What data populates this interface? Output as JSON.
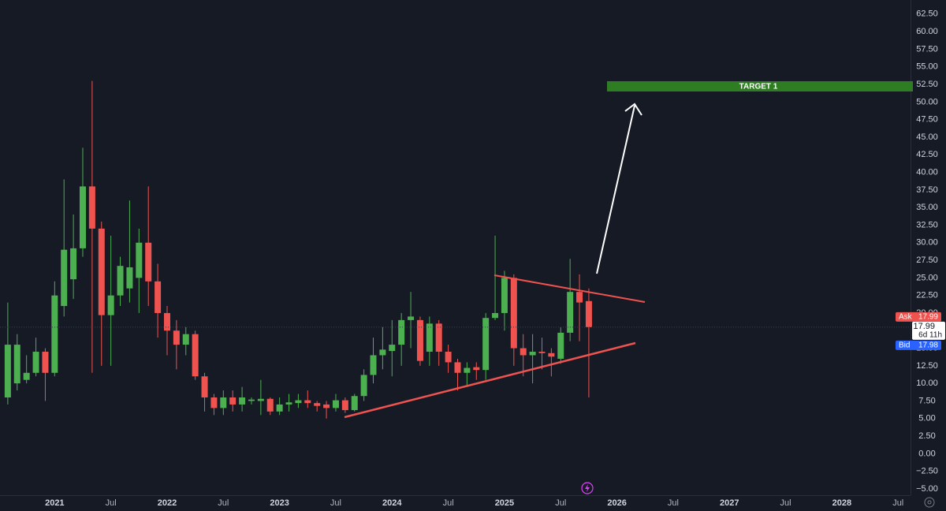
{
  "chart_data": {
    "type": "candlestick",
    "x": [
      "2020-08",
      "2020-09",
      "2020-10",
      "2020-11",
      "2020-12",
      "2021-01",
      "2021-02",
      "2021-03",
      "2021-04",
      "2021-05",
      "2021-06",
      "2021-07",
      "2021-08",
      "2021-09",
      "2021-10",
      "2021-11",
      "2021-12",
      "2022-01",
      "2022-02",
      "2022-03",
      "2022-04",
      "2022-05",
      "2022-06",
      "2022-07",
      "2022-08",
      "2022-09",
      "2022-10",
      "2022-11",
      "2022-12",
      "2023-01",
      "2023-02",
      "2023-03",
      "2023-04",
      "2023-05",
      "2023-06",
      "2023-07",
      "2023-08",
      "2023-09",
      "2023-10",
      "2023-11",
      "2023-12",
      "2024-01",
      "2024-02",
      "2024-03",
      "2024-04",
      "2024-05",
      "2024-06",
      "2024-07",
      "2024-08",
      "2024-09",
      "2024-10",
      "2024-11",
      "2024-12",
      "2025-01",
      "2025-02",
      "2025-03",
      "2025-04",
      "2025-05",
      "2025-06",
      "2025-07",
      "2025-08",
      "2025-09",
      "2025-10"
    ],
    "open": [
      8,
      10,
      10.5,
      11.5,
      14.5,
      11.5,
      21,
      24.8,
      29.2,
      38,
      32,
      19.7,
      22.5,
      23.5,
      25,
      30,
      24.5,
      20,
      17.5,
      15.5,
      17,
      11,
      8,
      6.5,
      8,
      7,
      7.5,
      7.5,
      7.8,
      6,
      7,
      7.2,
      7.6,
      7.2,
      7,
      6.5,
      7.6,
      6.2,
      8.2,
      11.2,
      14,
      14.6,
      15.5,
      19,
      19,
      14.5,
      18.5,
      14.5,
      13,
      11.5,
      12.3,
      11.9,
      19.3,
      20,
      25,
      15,
      14,
      14.5,
      14.3,
      13.5,
      17.2,
      23,
      21.7
    ],
    "high": [
      21.5,
      17,
      14,
      16.5,
      15,
      24.5,
      39,
      34,
      43.5,
      53,
      33,
      31,
      28,
      36,
      32,
      38,
      27,
      21,
      19,
      18,
      17.5,
      11.5,
      8.5,
      9,
      9,
      9.5,
      8,
      10.5,
      8,
      8,
      8.5,
      8.5,
      9,
      7.5,
      7.5,
      8.5,
      8,
      8.5,
      12,
      16.5,
      18,
      19,
      20,
      23,
      19.5,
      19.5,
      19,
      15.5,
      13.5,
      13,
      13,
      20,
      31,
      26,
      25.5,
      17,
      17,
      16.5,
      15,
      18,
      27.7,
      25.5,
      23.5
    ],
    "low": [
      7,
      9,
      10,
      11,
      7.5,
      11,
      19.5,
      22,
      28,
      11.5,
      12.5,
      12.5,
      21,
      21.5,
      20,
      21,
      16.5,
      14,
      12,
      14,
      10.5,
      6,
      5.5,
      5.5,
      6,
      6,
      7,
      5.5,
      5.5,
      5.5,
      6,
      6.5,
      6.5,
      6,
      5,
      6,
      5.8,
      6,
      7.5,
      10,
      12,
      11,
      12.5,
      15,
      12.5,
      12.5,
      12.5,
      11.5,
      9,
      9.5,
      10.5,
      10.5,
      19,
      17.5,
      12.5,
      11,
      10,
      12,
      11,
      12.8,
      16,
      16,
      8
    ],
    "close": [
      15.5,
      15.5,
      11.5,
      14.5,
      11.5,
      22.5,
      29,
      29.2,
      38,
      32,
      19.7,
      22.5,
      26.7,
      26.5,
      30,
      24.5,
      20,
      17.5,
      15.5,
      17,
      11,
      8,
      6.5,
      8,
      7,
      8,
      7.7,
      7.8,
      6,
      7,
      7.3,
      7.6,
      7.2,
      6.8,
      6.5,
      7.6,
      6.2,
      8.2,
      11.2,
      14,
      14.8,
      15.5,
      19,
      19.5,
      13.2,
      18.5,
      14.5,
      13,
      11.5,
      12.2,
      11.9,
      19.3,
      20,
      25,
      15,
      14,
      14.5,
      14.3,
      13.8,
      17.2,
      23,
      21.5,
      17.99
    ],
    "up_color": "#4caf50",
    "down_color": "#ef5350",
    "xlim": [
      "2020-07",
      "2028-09"
    ],
    "xticks": [
      {
        "value": "2021-01",
        "label": "2021"
      },
      {
        "value": "2021-07",
        "label": "Jul"
      },
      {
        "value": "2022-01",
        "label": "2022"
      },
      {
        "value": "2022-07",
        "label": "Jul"
      },
      {
        "value": "2023-01",
        "label": "2023"
      },
      {
        "value": "2023-07",
        "label": "Jul"
      },
      {
        "value": "2024-01",
        "label": "2024"
      },
      {
        "value": "2024-07",
        "label": "Jul"
      },
      {
        "value": "2025-01",
        "label": "2025"
      },
      {
        "value": "2025-07",
        "label": "Jul"
      },
      {
        "value": "2026-01",
        "label": "2026"
      },
      {
        "value": "2026-07",
        "label": "Jul"
      },
      {
        "value": "2027-01",
        "label": "2027"
      },
      {
        "value": "2027-07",
        "label": "Jul"
      },
      {
        "value": "2028-01",
        "label": "2028"
      },
      {
        "value": "2028-07",
        "label": "Jul"
      }
    ],
    "ylim": [
      -5.9,
      64.5
    ],
    "yticks": [
      {
        "value": -5,
        "label": "−5.00"
      },
      {
        "value": -2.5,
        "label": "−2.50"
      },
      {
        "value": 0,
        "label": "0.00"
      },
      {
        "value": 2.5,
        "label": "2.50"
      },
      {
        "value": 5,
        "label": "5.00"
      },
      {
        "value": 7.5,
        "label": "7.50"
      },
      {
        "value": 10,
        "label": "10.00"
      },
      {
        "value": 12.5,
        "label": "12.50"
      },
      {
        "value": 15,
        "label": "15.00"
      },
      {
        "value": 17.5,
        "label": "17.50"
      },
      {
        "value": 20,
        "label": "20.00"
      },
      {
        "value": 22.5,
        "label": "22.50"
      },
      {
        "value": 25,
        "label": "25.00"
      },
      {
        "value": 27.5,
        "label": "27.50"
      },
      {
        "value": 30,
        "label": "30.00"
      },
      {
        "value": 32.5,
        "label": "32.50"
      },
      {
        "value": 35,
        "label": "35.00"
      },
      {
        "value": 37.5,
        "label": "37.50"
      },
      {
        "value": 40,
        "label": "40.00"
      },
      {
        "value": 42.5,
        "label": "42.50"
      },
      {
        "value": 45,
        "label": "45.00"
      },
      {
        "value": 47.5,
        "label": "47.50"
      },
      {
        "value": 50,
        "label": "50.00"
      },
      {
        "value": 52.5,
        "label": "52.50"
      },
      {
        "value": 55,
        "label": "55.00"
      },
      {
        "value": 57.5,
        "label": "57.50"
      },
      {
        "value": 60,
        "label": "60.00"
      },
      {
        "value": 62.5,
        "label": "62.50"
      }
    ],
    "grid": false,
    "annotations": {
      "target": "TARGET 1"
    },
    "price_labels": {
      "ask_label": "Ask",
      "ask": {
        "value": 17.99,
        "label": "17.99"
      },
      "last": {
        "value": 17.99,
        "label": "17.99"
      },
      "countdown": "6d 11h",
      "bid_label": "Bid",
      "bid": {
        "value": 17.98,
        "label": "17.98"
      }
    }
  }
}
